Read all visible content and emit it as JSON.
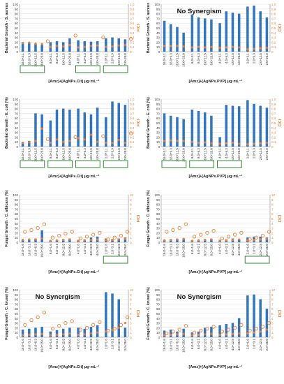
{
  "colors": {
    "bar": "#2e75c5",
    "fici_marker": "#ed7d31",
    "highlight_box": "#2e8b2e",
    "axis": "#888888",
    "grid": "#e6e6e6",
    "right_axis_text": "#ed7d31"
  },
  "chart_data": [
    {
      "type": "bar",
      "panel": "A",
      "title": "",
      "annotation": "",
      "xlabel": "[Amz]+[AgNPs.Cit] μg·mL⁻¹",
      "ylabel": "Bacterial Growth - S. aureus",
      "y2label": "FICI",
      "ylim": [
        0,
        100
      ],
      "y2lim": [
        0,
        1.0
      ],
      "ticks_left": [
        "0",
        "10",
        "20",
        "30",
        "40",
        "50",
        "60",
        "70",
        "80",
        "90",
        "100"
      ],
      "ticks_right": [
        "0",
        "0.1",
        "0.2",
        "0.3",
        "0.4",
        "0.5",
        "0.6",
        "0.7",
        "0.8",
        "0.9",
        "1.0"
      ],
      "categories": [
        "16.0+3.1",
        "16.0+6.3",
        "16.0+12.5",
        "16.0+25.0",
        "8.0+3.1",
        "8.0+6.3",
        "8.0+12.5",
        "8.0+25.0",
        "4.0+3.1",
        "4.0+6.3",
        "4.0+12.5",
        "4.0+25.0",
        "2.0+3.1",
        "2.0+6.3",
        "2.0+12.5",
        "2.0+25.0"
      ],
      "bars": [
        [
          20,
          18,
          16,
          14
        ],
        [
          20,
          22,
          20,
          28
        ],
        [
          24,
          22,
          21,
          22
        ],
        [
          28,
          30,
          28,
          26
        ]
      ],
      "fici_small": [
        [
          0.18,
          0.19,
          0.17,
          0.16
        ],
        [
          0.1,
          0.12,
          0.11,
          0.14
        ],
        [
          0.09,
          0.1,
          0.12,
          0.13
        ],
        [
          0.1,
          0.11,
          0.13,
          0.14
        ]
      ],
      "fici_open": [
        0.22,
        0.34,
        0.3,
        0.27
      ],
      "highlight_groups": [
        0,
        2,
        3
      ]
    },
    {
      "type": "bar",
      "panel": "B",
      "title": "",
      "annotation": "No Synergism",
      "xlabel": "[Amz]+[AgNPs.PVP] μg·mL⁻¹",
      "ylabel": "Bacterial Growth - S. aureus",
      "y2label": "FICI",
      "ylim": [
        0,
        100
      ],
      "y2lim": [
        0,
        1.0
      ],
      "ticks_left": [
        "0",
        "10",
        "20",
        "30",
        "40",
        "50",
        "60",
        "70",
        "80",
        "90",
        "100"
      ],
      "ticks_right": [
        "0",
        "0.1",
        "0.2",
        "0.3",
        "0.4",
        "0.5",
        "0.6",
        "0.7",
        "0.8",
        "0.9",
        "1.0"
      ],
      "categories": [
        "16.0+3.1",
        "16.0+6.3",
        "16.0+12.5",
        "16.0+25.0",
        "8.0+3.1",
        "8.0+6.3",
        "8.0+12.5",
        "8.0+25.0",
        "4.0+3.1",
        "4.0+6.3",
        "4.0+12.5",
        "4.0+25.0",
        "2.0+3.1",
        "2.0+6.3",
        "2.0+12.5",
        "2.0+25.0"
      ],
      "bars": [
        [
          65,
          58,
          52,
          40
        ],
        [
          78,
          72,
          70,
          68
        ],
        [
          60,
          85,
          82,
          80
        ],
        [
          95,
          97,
          85,
          72
        ]
      ],
      "fici_small": [
        [
          0.12,
          0.12,
          0.12,
          0.11
        ],
        [
          0.09,
          0.1,
          0.09,
          0.1
        ],
        [
          0.08,
          0.09,
          0.1,
          0.09
        ],
        [
          0.05,
          0.06,
          0.07,
          0.08
        ]
      ],
      "fici_open": [],
      "highlight_groups": []
    },
    {
      "type": "bar",
      "panel": "C",
      "title": "",
      "annotation": "",
      "xlabel": "[Amz]+[AgNPs.Cit] μg·mL⁻¹",
      "ylabel": "Bacterial Growth - E. coli (%)",
      "y2label": "FICI",
      "ylim": [
        0,
        100
      ],
      "y2lim": [
        0,
        1.0
      ],
      "ticks_left": [
        "0",
        "10",
        "20",
        "30",
        "40",
        "50",
        "60",
        "70",
        "80",
        "90",
        "100"
      ],
      "ticks_right": [
        "0",
        "0.1",
        "0.2",
        "0.3",
        "0.4",
        "0.5",
        "0.6",
        "0.7",
        "0.8",
        "0.9",
        "1.0"
      ],
      "categories": [
        "16.0+3.1",
        "16.0+6.3",
        "16.0+12.5",
        "16.0+25.0",
        "8.0+3.1",
        "8.0+6.3",
        "8.0+12.5",
        "8.0+25.0",
        "4.0+3.1",
        "4.0+6.3",
        "4.0+12.5",
        "4.0+25.0",
        "2.0+3.1",
        "2.0+6.3",
        "2.0+12.5",
        "2.0+25.0"
      ],
      "bars": [
        [
          10,
          12,
          70,
          68
        ],
        [
          55,
          78,
          80,
          78
        ],
        [
          80,
          72,
          68,
          82
        ],
        [
          62,
          95,
          92,
          88
        ]
      ],
      "fici_small": [
        [
          0.08,
          0.09,
          0.12,
          0.38
        ],
        [
          0.08,
          0.15,
          0.1,
          0.12
        ],
        [
          0.18,
          0.15,
          0.25,
          0.1
        ],
        [
          0.08,
          0.08,
          0.14,
          0.08
        ]
      ],
      "fici_open": [
        0.16,
        0.2,
        0.22,
        0.28
      ],
      "highlight_groups": [
        0,
        1,
        2,
        3
      ]
    },
    {
      "type": "bar",
      "panel": "D",
      "title": "",
      "annotation": "",
      "xlabel": "[Amz]+[AgNPs.PVP] μg·mL⁻¹",
      "ylabel": "Bacterial Growth - E. coli (%)",
      "y2label": "FICI",
      "ylim": [
        0,
        100
      ],
      "y2lim": [
        0,
        1.0
      ],
      "ticks_left": [
        "0",
        "10",
        "20",
        "30",
        "40",
        "50",
        "60",
        "70",
        "80",
        "90",
        "100"
      ],
      "ticks_right": [
        "0",
        "0.1",
        "0.2",
        "0.3",
        "0.4",
        "0.5",
        "0.6",
        "0.7",
        "0.8",
        "0.9",
        "1.0"
      ],
      "categories": [
        "16.0+3.1",
        "16.0+6.3",
        "16.0+12.5",
        "16.0+25.0",
        "8.0+3.1",
        "8.0+6.3",
        "8.0+12.5",
        "8.0+25.0",
        "4.0+3.1",
        "4.0+6.3",
        "4.0+12.5",
        "4.0+25.0",
        "2.0+3.1",
        "2.0+6.3",
        "2.0+12.5",
        "2.0+25.0"
      ],
      "bars": [
        [
          70,
          65,
          62,
          58
        ],
        [
          78,
          75,
          72,
          65
        ],
        [
          20,
          88,
          86,
          85
        ],
        [
          98,
          90,
          86,
          82
        ]
      ],
      "fici_small": [
        [
          0.12,
          0.13,
          0.12,
          0.12
        ],
        [
          0.1,
          0.08,
          0.09,
          0.07
        ],
        [
          0.06,
          0.07,
          0.08,
          0.06
        ],
        [
          0.05,
          0.06,
          0.07,
          0.08
        ]
      ],
      "fici_open": [],
      "highlight_groups": [
        0,
        1,
        2
      ]
    },
    {
      "type": "bar",
      "panel": "E",
      "title": "",
      "annotation": "",
      "xlabel": "[Amz]+[AgNPs.Cit] μg·mL⁻¹",
      "ylabel": "Fungal Growth - C. albicans (%)",
      "y2label": "FICI",
      "ylim": [
        0,
        100
      ],
      "y2lim": [
        0,
        10
      ],
      "ticks_left": [
        "0",
        "10",
        "20",
        "30",
        "40",
        "50",
        "60",
        "70",
        "80",
        "90",
        "100"
      ],
      "ticks_right": [
        "0",
        "1",
        "2",
        "3",
        "4",
        "5",
        "6",
        "7",
        "8",
        "9",
        "10"
      ],
      "categories": [
        "16.0+1.6",
        "16.0+3.1",
        "16.0+6.3",
        "16.0+25.0",
        "8.0+1.6",
        "8.0+3.1",
        "8.0+12.5",
        "8.0+25.0",
        "4.0+1.6",
        "4.0+3.1",
        "4.0+12.5",
        "4.0+25.0",
        "2.0+1.6",
        "2.0+3.1",
        "2.0+12.5",
        "2.0+25.0"
      ],
      "bars": [
        [
          5,
          6,
          8,
          25
        ],
        [
          4,
          5,
          6,
          8
        ],
        [
          5,
          6,
          10,
          12
        ],
        [
          8,
          6,
          8,
          10
        ]
      ],
      "fici_small": [
        [
          0.5,
          0.6,
          0.6,
          0.8
        ],
        [
          0.3,
          0.4,
          0.5,
          0.6
        ],
        [
          0.3,
          0.4,
          0.5,
          0.6
        ],
        [
          0.4,
          0.5,
          0.6,
          0.7
        ]
      ],
      "fici_open": [
        2.2,
        2.6,
        3.0,
        3.8,
        1.0,
        1.4,
        1.8,
        2.2,
        0.8,
        1.2,
        1.6,
        2.0,
        0.6,
        1.0,
        1.4,
        2.2
      ],
      "highlight_groups": [
        3
      ]
    },
    {
      "type": "bar",
      "panel": "F",
      "title": "",
      "annotation": "",
      "xlabel": "[Amz]+[AgNPs.PVP] μg·mL⁻¹",
      "ylabel": "Fungal Growth - C. albicans (%)",
      "y2label": "FICI",
      "ylim": [
        0,
        100
      ],
      "y2lim": [
        0,
        10
      ],
      "ticks_left": [
        "0",
        "10",
        "20",
        "30",
        "40",
        "50",
        "60",
        "70",
        "80",
        "90",
        "100"
      ],
      "ticks_right": [
        "0",
        "1",
        "2",
        "3",
        "4",
        "5",
        "6",
        "7",
        "8",
        "9",
        "10"
      ],
      "categories": [
        "16.0+1.6",
        "16.0+3.1",
        "16.0+6.3",
        "16.0+25.0",
        "8.0+1.6",
        "8.0+3.1",
        "8.0+12.5",
        "8.0+25.0",
        "4.0+1.6",
        "4.0+3.1",
        "4.0+12.5",
        "4.0+25.0",
        "2.0+1.6",
        "2.0+3.1",
        "2.0+12.5",
        "2.0+25.0"
      ],
      "bars": [
        [
          5,
          6,
          7,
          8
        ],
        [
          4,
          5,
          6,
          7
        ],
        [
          5,
          6,
          8,
          6
        ],
        [
          10,
          12,
          12,
          10
        ]
      ],
      "fici_small": [
        [
          0.4,
          0.5,
          0.6,
          0.7
        ],
        [
          0.3,
          0.4,
          0.5,
          0.6
        ],
        [
          0.3,
          0.4,
          0.5,
          0.6
        ],
        [
          0.4,
          0.5,
          0.6,
          0.7
        ]
      ],
      "fici_open": [
        2.2,
        2.6,
        3.0,
        3.8,
        1.2,
        1.6,
        2.0,
        2.4,
        0.8,
        1.2,
        1.6,
        2.0,
        0.6,
        1.0,
        1.4,
        2.2
      ],
      "highlight_groups": [
        3
      ]
    },
    {
      "type": "bar",
      "panel": "G",
      "title": "",
      "annotation": "No Synergism",
      "xlabel": "[Amz]+[AgNPs.Cit] μg·mL⁻¹",
      "ylabel": "Fungal Growth - C. krusei (%)",
      "y2label": "FICI",
      "ylim": [
        0,
        100
      ],
      "y2lim": [
        0,
        10
      ],
      "ticks_left": [
        "0",
        "10",
        "20",
        "30",
        "40",
        "50",
        "60",
        "70",
        "80",
        "90",
        "100"
      ],
      "ticks_right": [
        "0",
        "1",
        "2",
        "3",
        "4",
        "5",
        "6",
        "7",
        "8",
        "9",
        "10"
      ],
      "categories": [
        "16.0+1.6",
        "16.0+3.1",
        "16.0+6.3",
        "16.0+25.0",
        "8.0+1.6",
        "8.0+3.1",
        "8.0+12.5",
        "8.0+25.0",
        "4.0+1.6",
        "4.0+3.1",
        "4.0+12.5",
        "4.0+25.0",
        "2.0+1.6",
        "2.0+3.1",
        "2.0+12.5",
        "2.0+25.0"
      ],
      "bars": [
        [
          16,
          18,
          20,
          22
        ],
        [
          12,
          15,
          18,
          20
        ],
        [
          20,
          18,
          22,
          25
        ],
        [
          95,
          92,
          80,
          20
        ]
      ],
      "fici_small": [
        [
          0.4,
          0.5,
          0.6,
          0.7
        ],
        [
          0.4,
          0.5,
          0.6,
          0.8
        ],
        [
          0.5,
          0.6,
          0.8,
          1.0
        ],
        [
          1.2,
          1.5,
          2.0,
          3.0
        ]
      ],
      "fici_open": [
        2.6,
        3.6,
        4.2,
        5.2,
        1.8,
        2.4,
        3.0,
        3.4,
        1.6,
        2.0,
        2.6,
        3.2,
        1.4,
        1.8,
        2.6,
        4.2
      ],
      "highlight_groups": []
    },
    {
      "type": "bar",
      "panel": "H",
      "title": "",
      "annotation": "No Synergism",
      "xlabel": "[Amz]+[AgNPs.PVP] μg·mL⁻¹",
      "ylabel": "Fungal Growth - C. krusei (%)",
      "y2label": "FICI",
      "ylim": [
        0,
        100
      ],
      "y2lim": [
        0,
        10
      ],
      "ticks_left": [
        "0",
        "10",
        "20",
        "30",
        "40",
        "50",
        "60",
        "70",
        "80",
        "90",
        "100"
      ],
      "ticks_right": [
        "0",
        "1",
        "2",
        "3",
        "4",
        "5",
        "6",
        "7",
        "8",
        "9",
        "10"
      ],
      "categories": [
        "16.0+1.6",
        "16.0+3.1",
        "16.0+6.3",
        "16.0+25.0",
        "8.0+1.6",
        "8.0+3.1",
        "8.0+12.5",
        "8.0+25.0",
        "4.0+1.6",
        "4.0+3.1",
        "4.0+12.5",
        "4.0+25.0",
        "2.0+1.6",
        "2.0+3.1",
        "2.0+12.5",
        "2.0+25.0"
      ],
      "bars": [
        [
          14,
          16,
          12,
          18
        ],
        [
          10,
          12,
          20,
          22
        ],
        [
          25,
          28,
          30,
          40
        ],
        [
          88,
          90,
          80,
          60
        ]
      ],
      "fici_small": [
        [
          0.4,
          0.5,
          0.6,
          0.7
        ],
        [
          0.4,
          0.5,
          0.6,
          0.7
        ],
        [
          0.5,
          0.6,
          0.7,
          0.8
        ],
        [
          0.8,
          1.0,
          1.2,
          1.6
        ]
      ],
      "fici_open": [
        0.8,
        1.2,
        1.6,
        2.4,
        1.0,
        1.4,
        1.8,
        2.2,
        1.2,
        1.6,
        2.0,
        2.6,
        1.4,
        1.8,
        2.2,
        3.0
      ],
      "highlight_groups": []
    }
  ]
}
